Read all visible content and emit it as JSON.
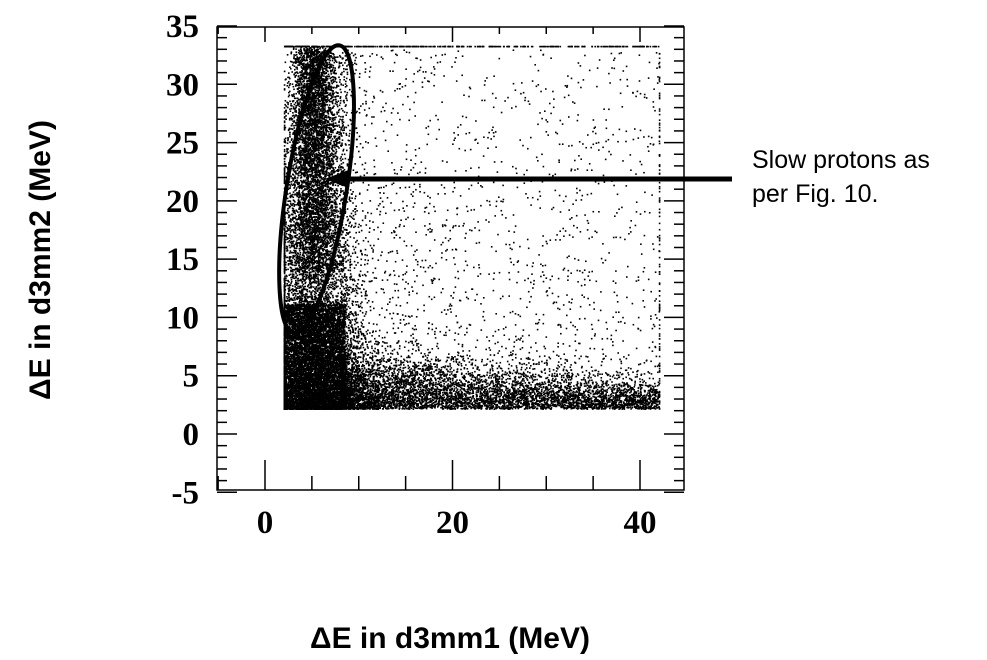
{
  "chart_data": {
    "type": "scatter",
    "title": "",
    "xlabel": "ΔE in d3mm1 (MeV)",
    "ylabel": "ΔE in d3mm2 (MeV)",
    "xlim": [
      -5,
      45
    ],
    "ylim": [
      -5,
      35
    ],
    "x_ticks": [
      0,
      20,
      40
    ],
    "y_ticks": [
      -5,
      0,
      5,
      10,
      15,
      20,
      25,
      30,
      35
    ],
    "grid": false,
    "description_of_data": "Two-dimensional energy-loss scatter; points occupy roughly x from 2 to 42 MeV and y from 2.2 to 33.3 MeV, with a dense vertical band near x = 3-8 MeV and a dense horizontal band near y = 2-5 MeV; upper and right edges show saturation lines at y = 33.3 and x = 42.",
    "density_regions": [
      {
        "label": "",
        "x_range": [
          2,
          9
        ],
        "y_range": [
          2.2,
          33.3
        ],
        "relative_density": "very high"
      },
      {
        "label": "",
        "x_range": [
          9,
          42
        ],
        "y_range": [
          2.2,
          5.5
        ],
        "relative_density": "high"
      },
      {
        "label": "",
        "x_range": [
          8,
          42
        ],
        "y_range": [
          5.5,
          33.3
        ],
        "relative_density": "sparse"
      }
    ],
    "annotations": [
      {
        "text_lines": [
          "Slow protons as",
          "per Fig. 10."
        ],
        "shape": "ellipse",
        "center": [
          5.5,
          21
        ],
        "semi_axes": [
          3.2,
          12.5
        ]
      }
    ]
  }
}
